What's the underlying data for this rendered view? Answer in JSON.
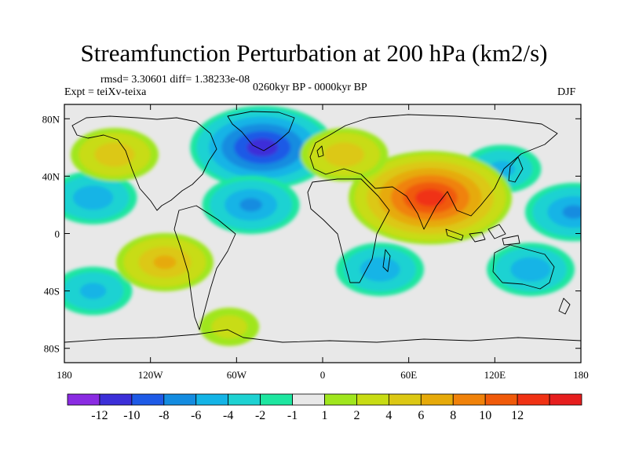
{
  "title": "Streamfunction Perturbation at 200 hPa (km2/s)",
  "stats": "rmsd= 3.30601  diff= 1.38233e-08",
  "experiment": "Expt = teiXv-teixa",
  "period": "0260kyr BP - 0000kyr BP",
  "season": "DJF",
  "lat_ticks": [
    "80N",
    "40N",
    "0",
    "40S",
    "80S"
  ],
  "lon_ticks": [
    "180",
    "120W",
    "60W",
    "0",
    "60E",
    "120E",
    "180"
  ],
  "colorbar": {
    "colors": [
      "#8a2be2",
      "#3c2fd8",
      "#1e5ae6",
      "#148ce0",
      "#14b4e6",
      "#1ed2d2",
      "#1ee6a0",
      "#e8e8e8",
      "#a0e61e",
      "#c8dc14",
      "#dcc814",
      "#e6aa0a",
      "#f0820a",
      "#f05a0a",
      "#f03214",
      "#e61e1e"
    ],
    "labels": [
      "-12",
      "-10",
      "-8",
      "-6",
      "-4",
      "-2",
      "-1",
      "1",
      "2",
      "4",
      "6",
      "8",
      "10",
      "12"
    ]
  },
  "chart_data": {
    "type": "heatmap",
    "title": "Streamfunction Perturbation at 200 hPa (km2/s)",
    "projection": "cylindrical equidistant",
    "xlim": [
      -180,
      180
    ],
    "ylim": [
      -90,
      90
    ],
    "levels": [
      -12,
      -10,
      -8,
      -6,
      -4,
      -2,
      -1,
      1,
      2,
      4,
      6,
      8,
      10,
      12
    ],
    "features": [
      {
        "name": "North Atlantic low",
        "lon": -42,
        "lat": 60,
        "value": -11
      },
      {
        "name": "Subtropical North Pacific low",
        "lon": -160,
        "lat": 25,
        "value": -5
      },
      {
        "name": "Subtropical central Atlantic low",
        "lon": -50,
        "lat": 20,
        "value": -6
      },
      {
        "name": "West Pacific low",
        "lon": 175,
        "lat": 15,
        "value": -6
      },
      {
        "name": "East Asian low",
        "lon": 125,
        "lat": 45,
        "value": -4
      },
      {
        "name": "Indian Ocean low",
        "lon": 40,
        "lat": -25,
        "value": -5
      },
      {
        "name": "Australian low",
        "lon": 145,
        "lat": -25,
        "value": -5
      },
      {
        "name": "Southeast Pacific low",
        "lon": -160,
        "lat": -40,
        "value": -4
      },
      {
        "name": "Tibetan high",
        "lon": 75,
        "lat": 25,
        "value": 13
      },
      {
        "name": "European high",
        "lon": 15,
        "lat": 55,
        "value": 5
      },
      {
        "name": "North Pacific high",
        "lon": -145,
        "lat": 55,
        "value": 5
      },
      {
        "name": "South Pacific high",
        "lon": -110,
        "lat": -20,
        "value": 6
      },
      {
        "name": "Southern Ocean high",
        "lon": -65,
        "lat": -65,
        "value": 2
      }
    ]
  }
}
